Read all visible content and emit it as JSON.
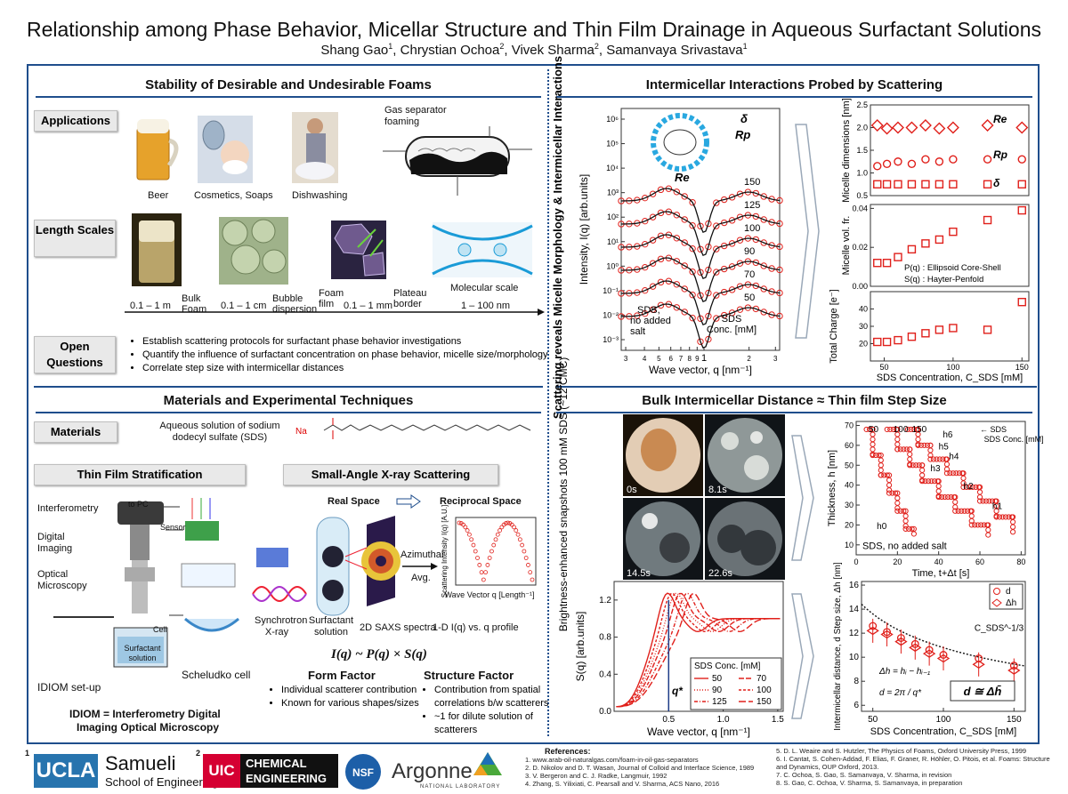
{
  "poster": {
    "title": "Relationship among Phase Behavior, Micellar Structure and Thin Film Drainage in Aqueous Surfactant Solutions",
    "authors": [
      {
        "name": "Shang Gao",
        "aff": "1"
      },
      {
        "name": "Chrystian Ochoa",
        "aff": "2"
      },
      {
        "name": "Vivek Sharma",
        "aff": "2"
      },
      {
        "name": "Samanvaya Srivastava",
        "aff": "1"
      }
    ]
  },
  "sections": {
    "stability": {
      "title": "Stability of Desirable and Undesirable Foams",
      "applications_label": "Applications",
      "applications": [
        "Beer",
        "Cosmetics, Soaps",
        "Dishwashing",
        "Gas separator foaming"
      ],
      "length_label": "Length Scales",
      "length_items": [
        {
          "name": "Bulk Foam",
          "range": "0.1 – 1 m"
        },
        {
          "name": "Bubble dispersion",
          "range": "0.1 – 1 cm"
        },
        {
          "name": "Foam film",
          "range": "0.1 – 1 mm"
        },
        {
          "name": "Plateau border",
          "range": ""
        },
        {
          "name": "Molecular scale",
          "range": "1 – 100 nm"
        }
      ],
      "questions_label": "Open Questions",
      "questions": [
        "Establish scattering protocols for surfactant phase behavior investigations",
        "Quantify the influence of surfactant concentration on phase behavior, micelle size/morphology",
        "Correlate step size with intermicellar distances"
      ]
    },
    "materials": {
      "title": "Materials and Experimental Techniques",
      "materials_label": "Materials",
      "materials_text": "Aqueous solution of sodium dodecyl sulfate (SDS)",
      "na_label": "Na",
      "tfs_label": "Thin Film Stratification",
      "saxs_label": "Small-Angle X-ray Scattering",
      "tfs_items": [
        "Interferometry",
        "to PC",
        "Sensor",
        "Digital Imaging",
        "Optical Microscopy",
        "Cell",
        "Surfactant solution",
        "IDIOM set-up",
        "Scheludko cell"
      ],
      "idiom_line1": "IDIOM = Interferometry Digital",
      "idiom_line2": "Imaging Optical Microscopy",
      "real_space": "Real Space",
      "reciprocal_space": "Reciprocal Space",
      "azimuthal": "Azimuthal",
      "avg": "Avg.",
      "synchrotron": "Synchrotron X-ray",
      "surfactant_solution": "Surfactant solution",
      "saxs_spectra": "2D SAXS spectra",
      "profile": "1-D I(q) vs. q profile",
      "scat_ylabel": "Scattering Intensity I(q) [A.U.]",
      "scat_xlabel": "Wave Vector q [Length⁻¹]",
      "equation": "I(q) ~ P(q) × S(q)",
      "form_factor": "Form Factor",
      "form_items": [
        "Individual scatterer contribution",
        "Known for various shapes/sizes"
      ],
      "structure_factor": "Structure Factor",
      "structure_items": [
        "Contribution from spatial correlations b/w scatterers",
        "~1 for dilute solution of scatterers"
      ]
    },
    "scattering": {
      "title": "Intermicellar Interactions Probed by Scattering",
      "side_label": "Scattering reveals Micelle Morphology & Intermicellar Interactions"
    },
    "bulk": {
      "title": "Bulk Intermicellar Distance ≈ Thin film Step Size",
      "side_label": "Brightness-enhanced snapshots 100 mM SDS (~12 CMC)",
      "snapshots": [
        "0s",
        "8.1s",
        "14.5s",
        "22.6s"
      ]
    }
  },
  "chart_data": [
    {
      "type": "scatter",
      "id": "intensity",
      "ylabel": "Intensity, I(q) [arb.units]",
      "xlabel": "Wave vector, q [nm⁻¹]",
      "x_ticks": [
        "3",
        "4",
        "5",
        "6",
        "7",
        "8",
        "9",
        "1",
        "2",
        "3"
      ],
      "y_ticks": [
        "10⁶",
        "10⁵",
        "10⁴",
        "10³",
        "10²",
        "10¹",
        "10⁰",
        "10⁻¹",
        "10⁻²",
        "10⁻³"
      ],
      "xlim": [
        0.28,
        3.2
      ],
      "series_labels": [
        "150",
        "125",
        "100",
        "90",
        "70",
        "50"
      ],
      "annotations": [
        "SDS, no added salt",
        "SDS Conc. [mM]",
        "δ",
        "Rp",
        "Re"
      ]
    },
    {
      "type": "scatter",
      "id": "micelle-dimensions",
      "xlabel": "SDS Concentration, C_SDS [mM]",
      "x_ticks": [
        "50",
        "100",
        "150"
      ],
      "xlim": [
        40,
        155
      ],
      "panels": [
        {
          "ylabel": "Micelle dimensions [nm]",
          "y_ticks": [
            "0.5",
            "1.0",
            "1.5",
            "2.0",
            "2.5"
          ],
          "ylim": [
            0.5,
            2.5
          ],
          "series": [
            {
              "name": "Re",
              "x": [
                45,
                52,
                60,
                70,
                80,
                90,
                100,
                125,
                150
              ],
              "y": [
                2.05,
                1.98,
                2.0,
                2.0,
                2.05,
                1.98,
                2.0,
                2.05,
                2.0
              ]
            },
            {
              "name": "Rp",
              "x": [
                45,
                52,
                60,
                70,
                80,
                90,
                100,
                125,
                150
              ],
              "y": [
                1.15,
                1.2,
                1.25,
                1.2,
                1.3,
                1.25,
                1.3,
                1.3,
                1.3
              ]
            },
            {
              "name": "δ",
              "x": [
                45,
                52,
                60,
                70,
                80,
                90,
                100,
                125,
                150
              ],
              "y": [
                0.75,
                0.75,
                0.75,
                0.75,
                0.75,
                0.75,
                0.75,
                0.75,
                0.75
              ]
            }
          ]
        },
        {
          "ylabel": "Micelle vol. fr.",
          "y_ticks": [
            "0.00",
            "0.02",
            "0.04"
          ],
          "ylim": [
            0,
            0.042
          ],
          "annotations": [
            "P(q) : Ellipsoid Core-Shell",
            "S(q) : Hayter-Penfold"
          ],
          "series": [
            {
              "name": "",
              "x": [
                45,
                52,
                60,
                70,
                80,
                90,
                100,
                125,
                150
              ],
              "y": [
                0.012,
                0.012,
                0.015,
                0.019,
                0.022,
                0.024,
                0.028,
                0.034,
                0.039
              ]
            }
          ]
        },
        {
          "ylabel": "Total Charge [e⁻]",
          "y_ticks": [
            "20",
            "30",
            "40"
          ],
          "ylim": [
            10,
            50
          ],
          "series": [
            {
              "name": "",
              "x": [
                45,
                52,
                60,
                70,
                80,
                90,
                100,
                125,
                150
              ],
              "y": [
                21,
                21,
                22,
                24,
                26,
                28,
                29,
                28,
                44
              ]
            }
          ]
        }
      ]
    },
    {
      "type": "line",
      "id": "structure-factor",
      "ylabel": "S(q) [arb.units]",
      "xlabel": "Wave vector, q [nm⁻¹]",
      "x_ticks": [
        "0.5",
        "1.0",
        "1.5"
      ],
      "y_ticks": [
        "0.0",
        "0.4",
        "0.8",
        "1.2"
      ],
      "xlim": [
        0.0,
        1.55
      ],
      "ylim": [
        0.0,
        1.4
      ],
      "legend_title": "SDS Conc. [mM]",
      "legend": [
        "50",
        "70",
        "90",
        "100",
        "125",
        "150"
      ],
      "q_star_label": "q*"
    },
    {
      "type": "scatter",
      "id": "thickness",
      "ylabel": "Thickness, h [nm]",
      "xlabel": "Time, t+Δt [s]",
      "x_ticks": [
        "0",
        "20",
        "40",
        "60",
        "80"
      ],
      "y_ticks": [
        "10",
        "20",
        "30",
        "40",
        "50",
        "60",
        "70"
      ],
      "xlim": [
        0,
        82
      ],
      "ylim": [
        5,
        72
      ],
      "top_labels": [
        "50",
        "100",
        "150"
      ],
      "top_note": "SDS Conc. [mM]",
      "step_labels": [
        "h6",
        "h5",
        "h4",
        "h3",
        "h2",
        "h1",
        "h0"
      ],
      "note": "SDS, no added salt"
    },
    {
      "type": "scatter",
      "id": "intermicellar-distance",
      "ylabel": "Intermicellar distance, d  Step size, Δh [nm]",
      "xlabel": "SDS Concentration, C_SDS [mM]",
      "x_ticks": [
        "50",
        "100",
        "150"
      ],
      "y_ticks": [
        "6",
        "8",
        "10",
        "12",
        "14",
        "16"
      ],
      "xlim": [
        42,
        158
      ],
      "ylim": [
        5.5,
        16.3
      ],
      "legend": [
        "d",
        "Δh"
      ],
      "fit_label": "C_SDS^-1/3",
      "series": [
        {
          "name": "d",
          "x": [
            50,
            60,
            70,
            80,
            90,
            100,
            125,
            150
          ],
          "y": [
            12.6,
            12.1,
            11.6,
            11.1,
            10.6,
            10.2,
            9.9,
            9.3
          ]
        },
        {
          "name": "Δh",
          "x": [
            50,
            60,
            70,
            80,
            90,
            100,
            125,
            150
          ],
          "y": [
            12.2,
            11.9,
            11.3,
            10.8,
            10.3,
            9.9,
            9.4,
            8.9
          ]
        }
      ],
      "equations": [
        "Δh = hᵢ − hᵢ₋₁",
        "d = 2π / q*",
        "d ≅ Δh̄"
      ]
    }
  ],
  "footer": {
    "aff1": "1",
    "aff2": "2",
    "ucla": "UCLA",
    "samueli": "Samueli",
    "samueli_sub": "School of Engineering",
    "uic": "UIC",
    "chem1": "CHEMICAL",
    "chem2": "ENGINEERING",
    "nsf": "NSF",
    "argonne": "Argonne",
    "argonne_sub": "NATIONAL LABORATORY",
    "references_title": "References:",
    "refs_left": [
      "1.  www.arab-oil-naturalgas.com/foam-in-oil-gas-separators",
      "2.  D. Nikolov and D. T. Wasan, Journal of Colloid and Interface Science, 1989",
      "3.  V. Bergeron and C. J. Radke, Langmuir, 1992",
      "4.  Zhang, S. Yilixiati, C. Pearsall and V. Sharma, ACS Nano, 2016"
    ],
    "refs_right": [
      "5.  D. L. Weaire and S. Hutzler, The Physics of Foams, Oxford University Press, 1999",
      "6.  I. Cantat, S. Cohen-Addad, F. Elias, F. Graner, R. Höhler, O. Pitois, et al. Foams: Structure and Dynamics, OUP Oxford, 2013.",
      "7.  C. Ochoa, S. Gao, S. Samanvaya, V. Sharma, in revision",
      "8.  S. Gao, C. Ochoa, V. Sharma, S. Samanvaya, in preparation"
    ]
  },
  "colors": {
    "accent": "#1f4e8c",
    "data": "#e0201b",
    "uic_red": "#d50032",
    "ucla_blue": "#2774ae"
  }
}
